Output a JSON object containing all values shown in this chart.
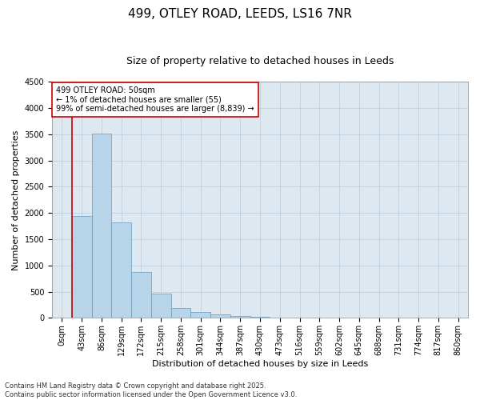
{
  "title_line1": "499, OTLEY ROAD, LEEDS, LS16 7NR",
  "title_line2": "Size of property relative to detached houses in Leeds",
  "xlabel": "Distribution of detached houses by size in Leeds",
  "ylabel": "Number of detached properties",
  "categories": [
    "0sqm",
    "43sqm",
    "86sqm",
    "129sqm",
    "172sqm",
    "215sqm",
    "258sqm",
    "301sqm",
    "344sqm",
    "387sqm",
    "430sqm",
    "473sqm",
    "516sqm",
    "559sqm",
    "602sqm",
    "645sqm",
    "688sqm",
    "731sqm",
    "774sqm",
    "817sqm",
    "860sqm"
  ],
  "values": [
    5,
    1950,
    3520,
    1820,
    870,
    460,
    195,
    115,
    65,
    40,
    20,
    10,
    5,
    3,
    2,
    1,
    1,
    0,
    0,
    0,
    0
  ],
  "bar_color": "#b8d4e8",
  "bar_edge_color": "#6699bb",
  "vline_color": "#cc0000",
  "vline_pos": 0.5,
  "ylim": [
    0,
    4500
  ],
  "yticks": [
    0,
    500,
    1000,
    1500,
    2000,
    2500,
    3000,
    3500,
    4000,
    4500
  ],
  "annotation_text": "499 OTLEY ROAD: 50sqm\n← 1% of detached houses are smaller (55)\n99% of semi-detached houses are larger (8,839) →",
  "annotation_box_edge": "#cc0000",
  "footer_text": "Contains HM Land Registry data © Crown copyright and database right 2025.\nContains public sector information licensed under the Open Government Licence v3.0.",
  "bg_color": "#ffffff",
  "plot_bg_color": "#dde8f0",
  "grid_color": "#c0d0e0",
  "title1_fontsize": 11,
  "title2_fontsize": 9,
  "axis_label_fontsize": 8,
  "tick_fontsize": 7,
  "annotation_fontsize": 7,
  "footer_fontsize": 6
}
